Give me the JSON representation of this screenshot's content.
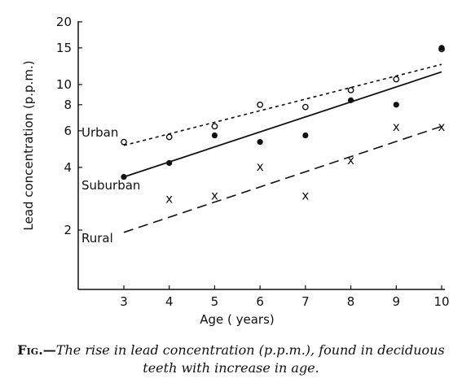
{
  "chart_data": {
    "type": "scatter",
    "xlabel": "Age ( years)",
    "ylabel": "Lead concentration  (p.p.m.)",
    "xlim": [
      2,
      10
    ],
    "ylim": [
      1,
      20
    ],
    "yscale": "log",
    "x_ticks": [
      3,
      4,
      5,
      6,
      7,
      8,
      9,
      10
    ],
    "y_ticks": [
      2,
      4,
      6,
      8,
      10,
      15,
      20
    ],
    "grid": false,
    "series": [
      {
        "name": "Urban",
        "marker": "open-circle",
        "x": [
          3,
          4,
          5,
          6,
          7,
          8,
          9,
          10
        ],
        "y": [
          5.3,
          5.6,
          6.3,
          8.0,
          7.8,
          9.4,
          10.6,
          14.8
        ],
        "trend": {
          "style": "dotted",
          "x": [
            3,
            10
          ],
          "y": [
            5.1,
            12.5
          ]
        }
      },
      {
        "name": "Suburban",
        "marker": "filled-circle",
        "x": [
          3,
          4,
          5,
          6,
          7,
          8,
          9,
          10
        ],
        "y": [
          3.6,
          4.2,
          5.7,
          5.3,
          5.7,
          8.4,
          8.0,
          15.0
        ],
        "trend": {
          "style": "solid",
          "x": [
            3,
            10
          ],
          "y": [
            3.6,
            11.5
          ]
        }
      },
      {
        "name": "Rural",
        "marker": "cross",
        "x": [
          4,
          5,
          6,
          7,
          8,
          9,
          10
        ],
        "y": [
          2.8,
          2.9,
          4.0,
          2.9,
          4.3,
          6.2,
          6.2
        ],
        "trend": {
          "style": "dashed",
          "x": [
            3,
            10
          ],
          "y": [
            1.95,
            6.3
          ]
        }
      }
    ]
  },
  "caption": {
    "prefix": "Fig.—",
    "text": "The rise in lead concentration (p.p.m.), found in deciduous teeth with increase in age."
  }
}
